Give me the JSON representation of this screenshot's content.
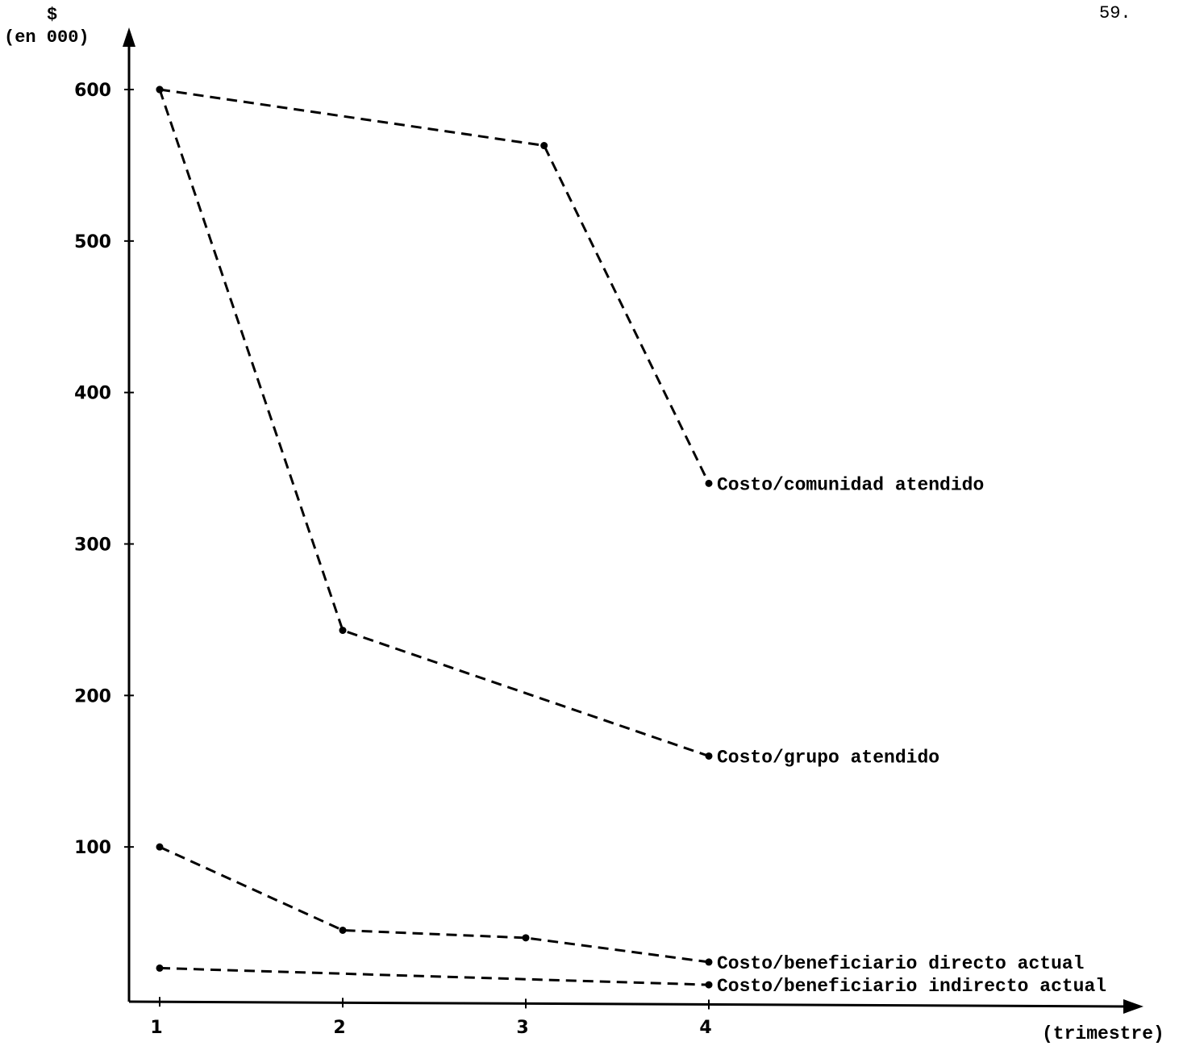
{
  "page_number": "59.",
  "chart_data": {
    "type": "line",
    "title": "",
    "xlabel": "(trimestre)",
    "ylabel_currency": "$",
    "ylabel_units": "(en 000)",
    "categories": [
      "1",
      "2",
      "3",
      "4"
    ],
    "x": [
      1,
      2,
      3,
      4
    ],
    "ylim": [
      0,
      600
    ],
    "y_ticks": [
      100,
      200,
      300,
      400,
      500,
      600
    ],
    "grid": false,
    "line_style": "dashed",
    "series": [
      {
        "name": "Costo/comunidad atendido",
        "x": [
          1,
          3.1,
          4
        ],
        "values": [
          600,
          563,
          340
        ]
      },
      {
        "name": "Costo/grupo atendido",
        "x": [
          1,
          2,
          4
        ],
        "values": [
          600,
          243,
          160
        ]
      },
      {
        "name": "Costo/beneficiario directo actual",
        "x": [
          1,
          2,
          3,
          4
        ],
        "values": [
          100,
          45,
          40,
          24
        ]
      },
      {
        "name": "Costo/beneficiario indirecto actual",
        "x": [
          1,
          4
        ],
        "values": [
          20,
          9
        ]
      }
    ]
  }
}
